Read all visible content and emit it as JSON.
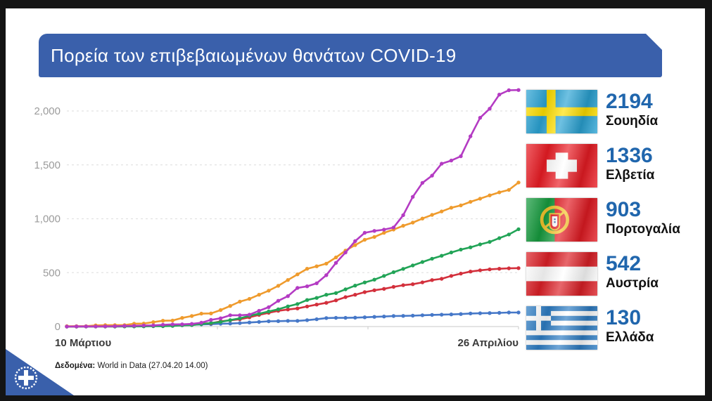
{
  "banner": {
    "title": "Πορεία των επιβεβαιωμένων θανάτων COVID-19",
    "bg_color": "#3a60ab",
    "text_color": "#ffffff"
  },
  "chart_data": {
    "type": "line",
    "title": "Πορεία των επιβεβαιωμένων θανάτων COVID-19",
    "x_start_label": "10 Μάρτιου",
    "x_end_label": "26 Απριλίου",
    "ylim": [
      0,
      2200
    ],
    "grid": "horizontal dashed",
    "grid_color": "#e2e2e2",
    "axis_color": "#c9c9c9",
    "tick_label_color": "#9b9b9b",
    "y_ticks": [
      {
        "value": 0,
        "label": "0"
      },
      {
        "value": 500,
        "label": "500"
      },
      {
        "value": 1000,
        "label": "1,000"
      },
      {
        "value": 1500,
        "label": "1,500"
      },
      {
        "value": 2000,
        "label": "2,000"
      }
    ],
    "x": [
      "10/3",
      "11/3",
      "12/3",
      "13/3",
      "14/3",
      "15/3",
      "16/3",
      "17/3",
      "18/3",
      "19/3",
      "20/3",
      "21/3",
      "22/3",
      "23/3",
      "24/3",
      "25/3",
      "26/3",
      "27/3",
      "28/3",
      "29/3",
      "30/3",
      "31/3",
      "1/4",
      "2/4",
      "3/4",
      "4/4",
      "5/4",
      "6/4",
      "7/4",
      "8/4",
      "9/4",
      "10/4",
      "11/4",
      "12/4",
      "13/4",
      "14/4",
      "15/4",
      "16/4",
      "17/4",
      "18/4",
      "19/4",
      "20/4",
      "21/4",
      "22/4",
      "23/4",
      "24/4",
      "25/4",
      "26/4"
    ],
    "series": [
      {
        "name": "Ελλάδα",
        "color": "#4678c8",
        "final": 130,
        "values": [
          0,
          0,
          1,
          1,
          3,
          4,
          4,
          5,
          5,
          6,
          6,
          13,
          15,
          17,
          20,
          22,
          26,
          28,
          32,
          38,
          43,
          49,
          50,
          53,
          53,
          59,
          68,
          79,
          81,
          81,
          83,
          86,
          90,
          93,
          98,
          99,
          101,
          105,
          108,
          110,
          113,
          116,
          121,
          123,
          125,
          127,
          130,
          130
        ]
      },
      {
        "name": "Αυστρία",
        "color": "#d3303c",
        "final": 542,
        "values": [
          0,
          0,
          1,
          1,
          1,
          1,
          2,
          3,
          4,
          6,
          6,
          8,
          16,
          21,
          28,
          30,
          49,
          58,
          68,
          86,
          108,
          128,
          146,
          158,
          168,
          186,
          204,
          220,
          243,
          273,
          295,
          319,
          337,
          350,
          368,
          384,
          393,
          410,
          431,
          443,
          470,
          491,
          510,
          522,
          530,
          536,
          540,
          542
        ]
      },
      {
        "name": "Πορτογαλία",
        "color": "#22a457",
        "final": 903,
        "values": [
          0,
          0,
          0,
          0,
          0,
          0,
          1,
          1,
          2,
          3,
          3,
          6,
          12,
          14,
          23,
          33,
          43,
          60,
          76,
          100,
          119,
          140,
          160,
          187,
          209,
          246,
          266,
          295,
          311,
          345,
          380,
          409,
          435,
          470,
          504,
          535,
          567,
          599,
          629,
          657,
          687,
          714,
          735,
          762,
          785,
          820,
          854,
          903
        ]
      },
      {
        "name": "Ελβετία",
        "color": "#ef9b2d",
        "final": 1336,
        "values": [
          3,
          4,
          4,
          11,
          13,
          14,
          14,
          27,
          28,
          41,
          54,
          56,
          80,
          98,
          120,
          122,
          153,
          191,
          231,
          257,
          295,
          333,
          378,
          432,
          484,
          536,
          559,
          584,
          641,
          705,
          756,
          805,
          831,
          870,
          900,
          935,
          964,
          1002,
          1036,
          1068,
          1102,
          1124,
          1157,
          1186,
          1217,
          1245,
          1268,
          1336
        ]
      },
      {
        "name": "Σουηδία",
        "color": "#b43bc3",
        "final": 2194,
        "values": [
          0,
          1,
          1,
          1,
          2,
          3,
          6,
          7,
          10,
          11,
          16,
          20,
          21,
          25,
          36,
          62,
          77,
          105,
          105,
          110,
          146,
          180,
          239,
          282,
          358,
          373,
          401,
          477,
          591,
          687,
          793,
          870,
          887,
          899,
          919,
          1033,
          1203,
          1333,
          1400,
          1511,
          1540,
          1580,
          1765,
          1937,
          2021,
          2152,
          2192,
          2194
        ]
      }
    ]
  },
  "legend": {
    "value_color": "#2066ad",
    "items": [
      {
        "flag": "sweden-flag",
        "value": "2194",
        "country": "Σουηδία"
      },
      {
        "flag": "switzerland-flag",
        "value": "1336",
        "country": "Ελβετία"
      },
      {
        "flag": "portugal-flag",
        "value": "903",
        "country": "Πορτογαλία"
      },
      {
        "flag": "austria-flag",
        "value": "542",
        "country": "Αυστρία"
      },
      {
        "flag": "greece-flag",
        "value": "130",
        "country": "Ελλάδα"
      }
    ]
  },
  "footer": {
    "source_label": "Δεδομένα:",
    "source_text": " World in Data (27.04.20 14.00)"
  },
  "logo": {
    "icon": "greek-government-emblem",
    "bg_color": "#3a60ab"
  }
}
